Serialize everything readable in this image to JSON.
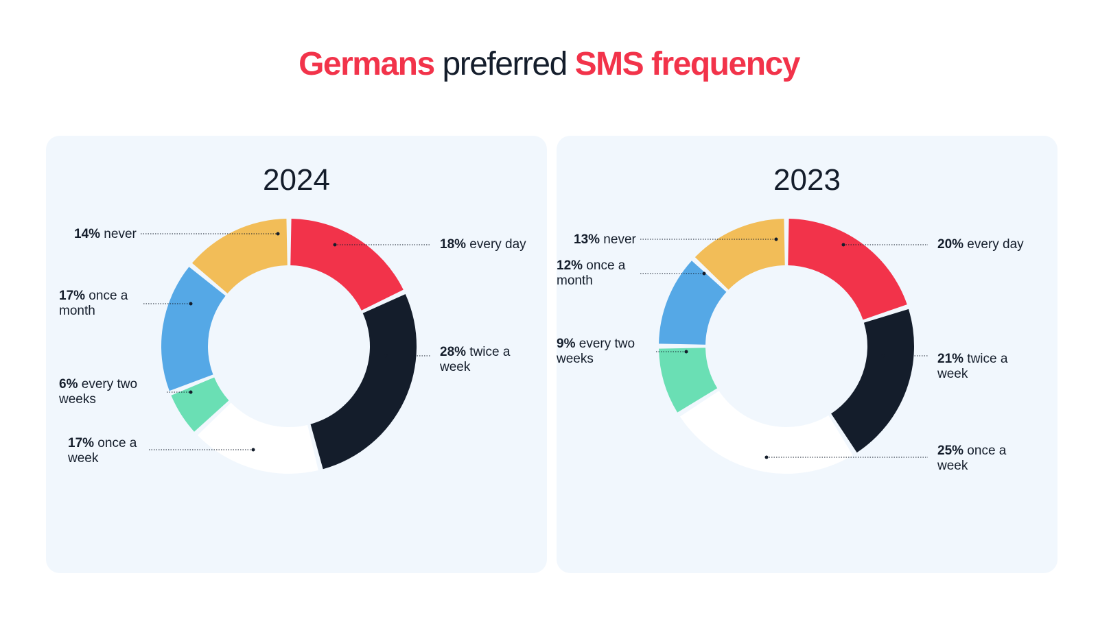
{
  "title": {
    "part1": "Germans",
    "part2": " preferred ",
    "part3": "SMS frequency"
  },
  "chart_data": [
    {
      "type": "pie",
      "title": "2024",
      "categories": [
        "every day",
        "twice a week",
        "once a week",
        "every two weeks",
        "once a month",
        "never"
      ],
      "values": [
        18,
        28,
        17,
        6,
        17,
        14
      ],
      "labels": [
        {
          "pct": "18%",
          "text": " every day"
        },
        {
          "pct": "28%",
          "text": " twice a\nweek"
        },
        {
          "pct": "17%",
          "text": " once a\nweek"
        },
        {
          "pct": "6%",
          "text": " every two\nweeks"
        },
        {
          "pct": "17%",
          "text": " once a\nmonth"
        },
        {
          "pct": "14%",
          "text": " never"
        }
      ],
      "colors": [
        "#f2334a",
        "#141d2b",
        "#ffffff",
        "#6adfb4",
        "#55a8e6",
        "#f2bd58"
      ]
    },
    {
      "type": "pie",
      "title": "2023",
      "categories": [
        "every day",
        "twice a week",
        "once a week",
        "every two weeks",
        "once a month",
        "never"
      ],
      "values": [
        20,
        21,
        25,
        9,
        12,
        13
      ],
      "labels": [
        {
          "pct": "20%",
          "text": " every day"
        },
        {
          "pct": "21%",
          "text": " twice a\nweek"
        },
        {
          "pct": "25%",
          "text": " once a\nweek"
        },
        {
          "pct": "9%",
          "text": " every two\nweeks"
        },
        {
          "pct": "12%",
          "text": " once a\nmonth"
        },
        {
          "pct": "13%",
          "text": " never"
        }
      ],
      "colors": [
        "#f2334a",
        "#141d2b",
        "#ffffff",
        "#6adfb4",
        "#55a8e6",
        "#f2bd58"
      ]
    }
  ]
}
